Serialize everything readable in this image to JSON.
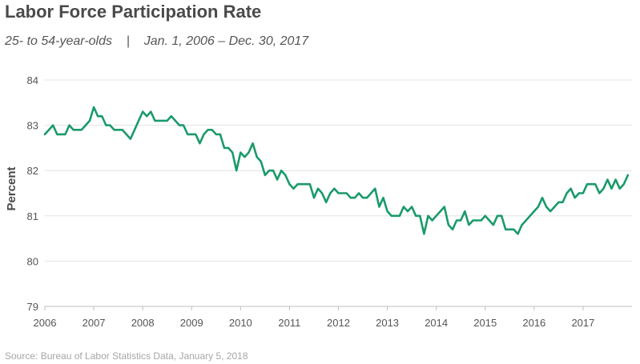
{
  "header": {
    "title": "Labor Force Participation Rate",
    "subtitle": "25- to 54-year-olds    |    Jan. 1, 2006 – Dec. 30, 2017"
  },
  "footer": {
    "source": "Source: Bureau of Labor Statistics Data,  January 5, 2018"
  },
  "chart_data": {
    "type": "line",
    "title": "Labor Force Participation Rate",
    "subtitle": "25- to 54-year-olds | Jan. 1, 2006 – Dec. 30, 2017",
    "xlabel": "",
    "ylabel": "Percent",
    "xlim": [
      2006,
      2018
    ],
    "ylim": [
      79,
      84
    ],
    "x_ticks": [
      "2006",
      "2007",
      "2008",
      "2009",
      "2010",
      "2011",
      "2012",
      "2013",
      "2014",
      "2015",
      "2016",
      "2017"
    ],
    "y_ticks": [
      "79",
      "80",
      "81",
      "82",
      "83",
      "84"
    ],
    "grid": true,
    "line_color": "#1a9a6a",
    "series": [
      {
        "name": "Labor Force Participation Rate (25-54)",
        "start_year": 2006,
        "interval": "monthly",
        "values": [
          82.8,
          82.9,
          83.0,
          82.8,
          82.8,
          82.8,
          83.0,
          82.9,
          82.9,
          82.9,
          83.0,
          83.1,
          83.4,
          83.2,
          83.2,
          83.0,
          83.0,
          82.9,
          82.9,
          82.9,
          82.8,
          82.7,
          82.9,
          83.1,
          83.3,
          83.2,
          83.3,
          83.1,
          83.1,
          83.1,
          83.1,
          83.2,
          83.1,
          83.0,
          83.0,
          82.8,
          82.8,
          82.8,
          82.6,
          82.8,
          82.9,
          82.9,
          82.8,
          82.8,
          82.5,
          82.5,
          82.4,
          82.0,
          82.4,
          82.3,
          82.4,
          82.6,
          82.3,
          82.2,
          81.9,
          82.0,
          82.0,
          81.8,
          82.0,
          81.9,
          81.7,
          81.6,
          81.7,
          81.7,
          81.7,
          81.7,
          81.4,
          81.6,
          81.5,
          81.3,
          81.5,
          81.6,
          81.5,
          81.5,
          81.5,
          81.4,
          81.4,
          81.5,
          81.4,
          81.4,
          81.5,
          81.6,
          81.2,
          81.4,
          81.1,
          81.0,
          81.0,
          81.0,
          81.2,
          81.1,
          81.2,
          81.0,
          81.0,
          80.6,
          81.0,
          80.9,
          81.0,
          81.1,
          81.2,
          80.8,
          80.7,
          80.9,
          80.9,
          81.1,
          80.8,
          80.9,
          80.9,
          80.9,
          81.0,
          80.9,
          80.8,
          81.0,
          81.0,
          80.7,
          80.7,
          80.7,
          80.6,
          80.8,
          80.9,
          81.0,
          81.1,
          81.2,
          81.4,
          81.2,
          81.1,
          81.2,
          81.3,
          81.3,
          81.5,
          81.6,
          81.4,
          81.5,
          81.5,
          81.7,
          81.7,
          81.7,
          81.5,
          81.6,
          81.8,
          81.6,
          81.8,
          81.6,
          81.7,
          81.9
        ]
      }
    ]
  }
}
